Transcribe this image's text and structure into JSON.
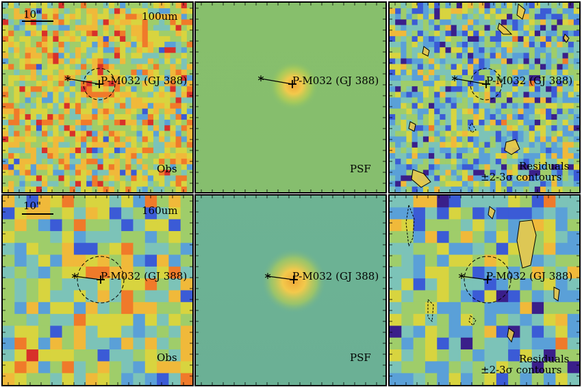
{
  "colors": {
    "background_obs": "#6fae7a",
    "psf_green_top": "#87bf6c",
    "psf_green_bottom": "#6fb08e",
    "psf_core": "#f2c94c",
    "palette": [
      "#3a1f8a",
      "#3b5bd6",
      "#5aa0d8",
      "#7cc3b8",
      "#9fcd6a",
      "#d8d43f",
      "#f0b93a",
      "#f07a2a",
      "#d8302a"
    ]
  },
  "rows": [
    {
      "band": "100um",
      "scalebar": "10\"",
      "panels": [
        {
          "id": "obs-100",
          "corner_label": "Obs",
          "source_label": "P-M032 (GJ 388)",
          "show_band": true,
          "show_scalebar": true
        },
        {
          "id": "psf-100",
          "corner_label": "PSF",
          "source_label": "P-M032 (GJ 388)"
        },
        {
          "id": "res-100",
          "corner_label_1": "Residuals",
          "corner_label_2": "±2-3σ contours",
          "source_label": "P-M032 (GJ 388)"
        }
      ]
    },
    {
      "band": "160um",
      "scalebar": "10\"",
      "panels": [
        {
          "id": "obs-160",
          "corner_label": "Obs",
          "source_label": "P-M032 (GJ 388)",
          "show_band": true,
          "show_scalebar": true
        },
        {
          "id": "psf-160",
          "corner_label": "PSF",
          "source_label": "P-M032 (GJ 388)"
        },
        {
          "id": "res-160",
          "corner_label_1": "Residuals",
          "corner_label_2": "±2-3σ contours",
          "source_label": "P-M032 (GJ 388)"
        }
      ]
    }
  ]
}
